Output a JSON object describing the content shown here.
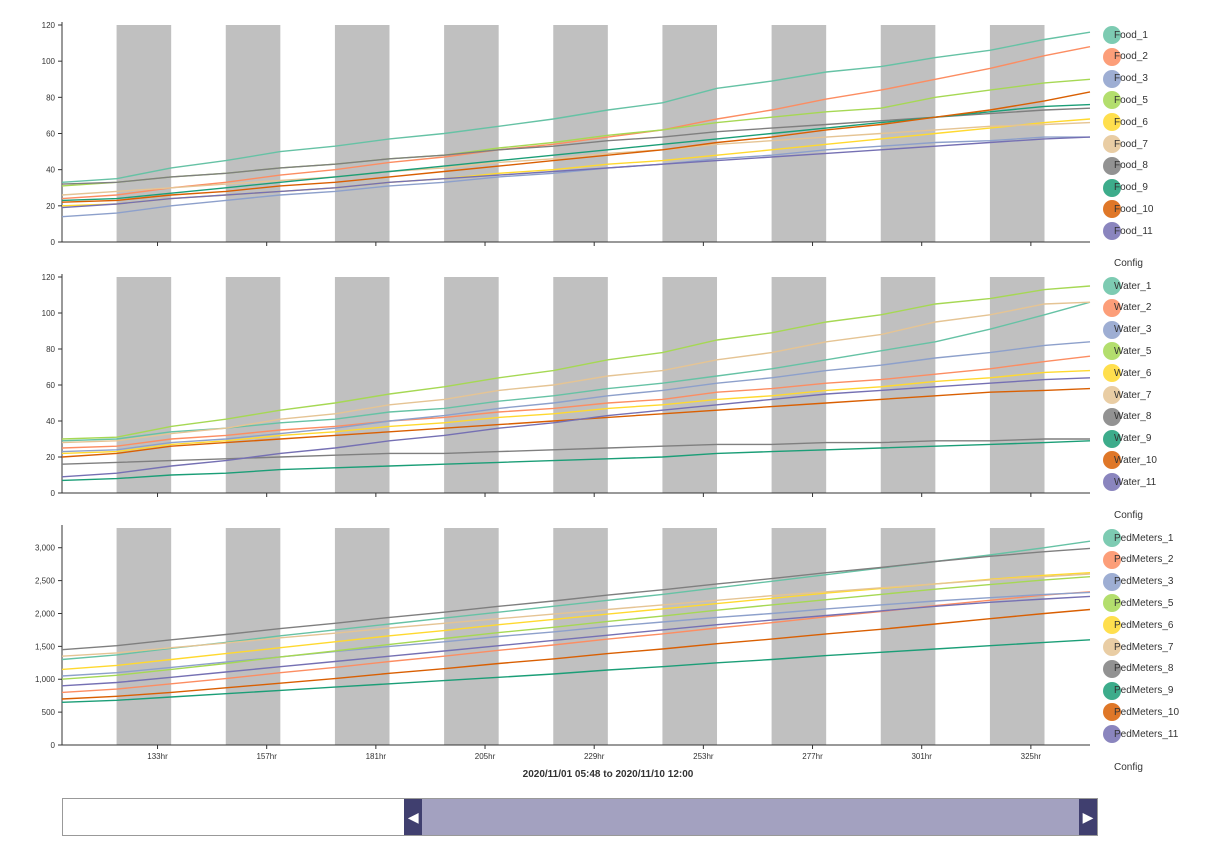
{
  "range_caption": "2020/11/01 05:48 to 2020/11/10 12:00",
  "colors": {
    "night_band": "#c0c0c0",
    "brush_selection": "#a3a1c0",
    "brush_handle": "#403f6f",
    "series_palette": [
      "#66c2a5",
      "#fc8d62",
      "#8da0cb",
      "#a6d854",
      "#ffd92f",
      "#e5c494",
      "#7f7f7f",
      "#1b9e77",
      "#d95f02",
      "#7570b3"
    ]
  },
  "shared_x_ticks": [
    "133hr",
    "157hr",
    "181hr",
    "205hr",
    "229hr",
    "253hr",
    "277hr",
    "301hr",
    "325hr"
  ],
  "brush": {
    "selection_start": 0.33,
    "selection_end": 1.0,
    "left_handle_icon": "left-triangle-icon",
    "right_handle_icon": "right-triangle-icon"
  },
  "chart_data": [
    {
      "type": "line",
      "panel": "food",
      "ylim": [
        0,
        120
      ],
      "yticks": [
        0,
        20,
        40,
        60,
        80,
        100,
        120
      ],
      "xlim": [
        112,
        338
      ],
      "x": [
        112,
        124,
        136,
        148,
        160,
        172,
        184,
        196,
        208,
        220,
        232,
        244,
        256,
        268,
        280,
        292,
        304,
        316,
        328,
        338
      ],
      "night_bands": [
        [
          124,
          136
        ],
        [
          148,
          160
        ],
        [
          172,
          184
        ],
        [
          196,
          208
        ],
        [
          220,
          232
        ],
        [
          244,
          256
        ],
        [
          268,
          280
        ],
        [
          292,
          304
        ],
        [
          316,
          328
        ]
      ],
      "legend_position": "right",
      "legend_footer": "Config",
      "series": [
        {
          "name": "Food_1",
          "color": "#66c2a5",
          "values": [
            33,
            35,
            41,
            45,
            50,
            53,
            57,
            60,
            64,
            68,
            73,
            77,
            85,
            89,
            94,
            97,
            102,
            106,
            112,
            116
          ]
        },
        {
          "name": "Food_2",
          "color": "#fc8d62",
          "values": [
            24,
            26,
            30,
            33,
            37,
            40,
            44,
            47,
            51,
            54,
            58,
            62,
            68,
            73,
            79,
            84,
            90,
            96,
            103,
            108
          ]
        },
        {
          "name": "Food_3",
          "color": "#8da0cb",
          "values": [
            14,
            16,
            20,
            23,
            26,
            28,
            31,
            33,
            36,
            38,
            41,
            43,
            46,
            48,
            51,
            53,
            55,
            56,
            58,
            58
          ]
        },
        {
          "name": "Food_5",
          "color": "#a6d854",
          "values": [
            31,
            33,
            36,
            38,
            41,
            43,
            46,
            48,
            52,
            55,
            59,
            62,
            66,
            69,
            72,
            74,
            80,
            84,
            88,
            90
          ]
        },
        {
          "name": "Food_6",
          "color": "#ffd92f",
          "values": [
            20,
            21,
            24,
            26,
            28,
            30,
            33,
            35,
            38,
            40,
            43,
            45,
            48,
            51,
            54,
            57,
            60,
            63,
            66,
            68
          ]
        },
        {
          "name": "Food_7",
          "color": "#e5c494",
          "values": [
            26,
            28,
            30,
            32,
            34,
            36,
            39,
            41,
            44,
            46,
            49,
            51,
            54,
            56,
            58,
            60,
            62,
            64,
            65,
            66
          ]
        },
        {
          "name": "Food_8",
          "color": "#7f7f7f",
          "values": [
            32,
            33,
            36,
            38,
            41,
            43,
            46,
            48,
            51,
            53,
            56,
            58,
            61,
            63,
            65,
            67,
            69,
            71,
            73,
            74
          ]
        },
        {
          "name": "Food_9",
          "color": "#1b9e77",
          "values": [
            23,
            24,
            27,
            30,
            33,
            36,
            39,
            42,
            45,
            48,
            51,
            54,
            57,
            60,
            63,
            66,
            69,
            72,
            75,
            76
          ]
        },
        {
          "name": "Food_10",
          "color": "#d95f02",
          "values": [
            22,
            23,
            26,
            28,
            31,
            33,
            36,
            39,
            42,
            45,
            48,
            51,
            55,
            58,
            62,
            65,
            69,
            73,
            78,
            83
          ]
        },
        {
          "name": "Food_11",
          "color": "#7570b3",
          "values": [
            19,
            21,
            24,
            26,
            28,
            30,
            33,
            35,
            37,
            39,
            41,
            43,
            45,
            47,
            49,
            51,
            53,
            55,
            57,
            58
          ]
        }
      ]
    },
    {
      "type": "line",
      "panel": "water",
      "ylim": [
        0,
        120
      ],
      "yticks": [
        0,
        20,
        40,
        60,
        80,
        100,
        120
      ],
      "xlim": [
        112,
        338
      ],
      "x": [
        112,
        124,
        136,
        148,
        160,
        172,
        184,
        196,
        208,
        220,
        232,
        244,
        256,
        268,
        280,
        292,
        304,
        316,
        328,
        338
      ],
      "night_bands": [
        [
          124,
          136
        ],
        [
          148,
          160
        ],
        [
          172,
          184
        ],
        [
          196,
          208
        ],
        [
          220,
          232
        ],
        [
          244,
          256
        ],
        [
          268,
          280
        ],
        [
          292,
          304
        ],
        [
          316,
          328
        ]
      ],
      "legend_position": "right",
      "legend_footer": "Config",
      "series": [
        {
          "name": "Water_1",
          "color": "#66c2a5",
          "values": [
            29,
            30,
            34,
            36,
            39,
            41,
            45,
            47,
            51,
            54,
            58,
            61,
            65,
            69,
            74,
            79,
            84,
            91,
            99,
            106
          ]
        },
        {
          "name": "Water_2",
          "color": "#fc8d62",
          "values": [
            25,
            26,
            30,
            32,
            35,
            37,
            40,
            42,
            45,
            47,
            50,
            52,
            56,
            58,
            61,
            63,
            66,
            69,
            73,
            76
          ]
        },
        {
          "name": "Water_3",
          "color": "#8da0cb",
          "values": [
            23,
            24,
            28,
            30,
            33,
            36,
            40,
            43,
            47,
            50,
            54,
            57,
            61,
            64,
            68,
            71,
            75,
            78,
            82,
            84
          ]
        },
        {
          "name": "Water_5",
          "color": "#a6d854",
          "values": [
            30,
            31,
            37,
            41,
            46,
            50,
            55,
            59,
            64,
            68,
            74,
            78,
            85,
            89,
            95,
            99,
            105,
            108,
            113,
            115
          ]
        },
        {
          "name": "Water_6",
          "color": "#ffd92f",
          "values": [
            22,
            23,
            27,
            29,
            32,
            34,
            37,
            39,
            42,
            44,
            47,
            49,
            52,
            54,
            57,
            59,
            62,
            64,
            67,
            68
          ]
        },
        {
          "name": "Water_7",
          "color": "#e5c494",
          "values": [
            28,
            29,
            33,
            36,
            41,
            44,
            49,
            52,
            57,
            60,
            65,
            68,
            74,
            78,
            84,
            88,
            95,
            99,
            105,
            106
          ]
        },
        {
          "name": "Water_8",
          "color": "#7f7f7f",
          "values": [
            16,
            17,
            18,
            19,
            20,
            21,
            22,
            22,
            23,
            24,
            25,
            26,
            27,
            27,
            28,
            28,
            29,
            29,
            30,
            30
          ]
        },
        {
          "name": "Water_9",
          "color": "#1b9e77",
          "values": [
            7,
            8,
            10,
            11,
            13,
            14,
            15,
            16,
            17,
            18,
            19,
            20,
            22,
            23,
            24,
            25,
            26,
            27,
            28,
            29
          ]
        },
        {
          "name": "Water_10",
          "color": "#d95f02",
          "values": [
            20,
            22,
            26,
            28,
            30,
            32,
            34,
            36,
            38,
            40,
            42,
            44,
            46,
            48,
            50,
            52,
            54,
            56,
            57,
            58
          ]
        },
        {
          "name": "Water_11",
          "color": "#7570b3",
          "values": [
            9,
            11,
            15,
            18,
            22,
            25,
            29,
            32,
            36,
            39,
            43,
            46,
            49,
            52,
            55,
            57,
            59,
            61,
            63,
            64
          ]
        }
      ]
    },
    {
      "type": "line",
      "panel": "pedmeters",
      "ylim": [
        0,
        3300
      ],
      "yticks": [
        0,
        500,
        1000,
        1500,
        2000,
        2500,
        3000
      ],
      "ytick_labels": [
        "0",
        "500",
        "1,000",
        "1,500",
        "2,000",
        "2,500",
        "3,000"
      ],
      "xlim": [
        112,
        338
      ],
      "x": [
        112,
        124,
        136,
        148,
        160,
        172,
        184,
        196,
        208,
        220,
        232,
        244,
        256,
        268,
        280,
        292,
        304,
        316,
        328,
        338
      ],
      "night_bands": [
        [
          124,
          136
        ],
        [
          148,
          160
        ],
        [
          172,
          184
        ],
        [
          196,
          208
        ],
        [
          220,
          232
        ],
        [
          244,
          256
        ],
        [
          268,
          280
        ],
        [
          292,
          304
        ],
        [
          316,
          328
        ]
      ],
      "xtick_values": [
        133,
        157,
        181,
        205,
        229,
        253,
        277,
        301,
        325
      ],
      "legend_position": "right",
      "legend_footer": "Config",
      "series": [
        {
          "name": "PedMeters_1",
          "color": "#66c2a5",
          "values": [
            1300,
            1370,
            1470,
            1560,
            1660,
            1750,
            1840,
            1930,
            2020,
            2110,
            2200,
            2290,
            2390,
            2490,
            2590,
            2690,
            2790,
            2890,
            3000,
            3100
          ]
        },
        {
          "name": "PedMeters_2",
          "color": "#fc8d62",
          "values": [
            800,
            850,
            930,
            1010,
            1100,
            1180,
            1270,
            1350,
            1440,
            1520,
            1610,
            1690,
            1780,
            1860,
            1950,
            2030,
            2120,
            2200,
            2280,
            2330
          ]
        },
        {
          "name": "PedMeters_3",
          "color": "#8da0cb",
          "values": [
            1050,
            1100,
            1180,
            1260,
            1340,
            1420,
            1500,
            1570,
            1650,
            1720,
            1800,
            1870,
            1940,
            2000,
            2070,
            2130,
            2190,
            2240,
            2290,
            2320
          ]
        },
        {
          "name": "PedMeters_5",
          "color": "#a6d854",
          "values": [
            1000,
            1060,
            1150,
            1240,
            1340,
            1430,
            1530,
            1620,
            1710,
            1790,
            1880,
            1960,
            2050,
            2130,
            2210,
            2290,
            2370,
            2440,
            2510,
            2560
          ]
        },
        {
          "name": "PedMeters_6",
          "color": "#ffd92f",
          "values": [
            1150,
            1210,
            1300,
            1390,
            1480,
            1570,
            1660,
            1740,
            1830,
            1910,
            1990,
            2070,
            2150,
            2230,
            2310,
            2380,
            2450,
            2520,
            2580,
            2620
          ]
        },
        {
          "name": "PedMeters_7",
          "color": "#e5c494",
          "values": [
            1350,
            1400,
            1480,
            1550,
            1630,
            1700,
            1780,
            1850,
            1920,
            1990,
            2060,
            2130,
            2200,
            2270,
            2330,
            2390,
            2450,
            2510,
            2560,
            2600
          ]
        },
        {
          "name": "PedMeters_8",
          "color": "#7f7f7f",
          "values": [
            1450,
            1510,
            1600,
            1680,
            1770,
            1850,
            1940,
            2020,
            2110,
            2190,
            2280,
            2360,
            2450,
            2530,
            2620,
            2700,
            2790,
            2870,
            2940,
            2990
          ]
        },
        {
          "name": "PedMeters_9",
          "color": "#1b9e77",
          "values": [
            650,
            680,
            730,
            780,
            830,
            880,
            930,
            980,
            1030,
            1080,
            1140,
            1190,
            1250,
            1300,
            1360,
            1410,
            1460,
            1510,
            1560,
            1600
          ]
        },
        {
          "name": "PedMeters_10",
          "color": "#d95f02",
          "values": [
            700,
            740,
            800,
            870,
            940,
            1010,
            1090,
            1160,
            1240,
            1310,
            1390,
            1460,
            1540,
            1610,
            1690,
            1760,
            1840,
            1920,
            2000,
            2060
          ]
        },
        {
          "name": "PedMeters_11",
          "color": "#7570b3",
          "values": [
            900,
            950,
            1030,
            1110,
            1190,
            1270,
            1350,
            1430,
            1510,
            1590,
            1670,
            1750,
            1830,
            1900,
            1970,
            2040,
            2110,
            2170,
            2220,
            2260
          ]
        }
      ]
    }
  ]
}
